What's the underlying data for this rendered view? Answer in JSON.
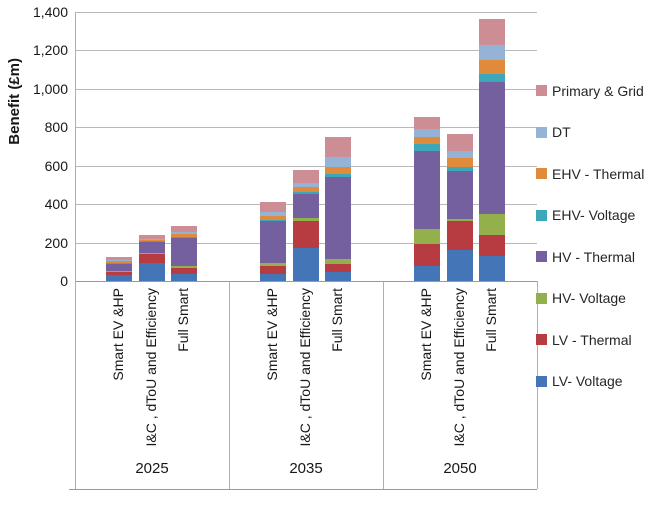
{
  "chart_data": {
    "type": "bar",
    "stacked": true,
    "title": "",
    "ylabel": "Benefit (£m)",
    "xlabel": "",
    "ylim": [
      0,
      1400
    ],
    "ytick_step": 200,
    "ytick_labels": [
      "0",
      "200",
      "400",
      "600",
      "800",
      "1,000",
      "1,200",
      "1,400"
    ],
    "grid": true,
    "legend_position": "right",
    "legend_order_top_to_bottom": [
      "Primary & Grid",
      "DT",
      "EHV - Thermal",
      "EHV- Voltage",
      "HV - Thermal",
      "HV- Voltage",
      "LV - Thermal",
      "LV- Voltage"
    ],
    "stack_order_bottom_to_top": [
      "LV- Voltage",
      "LV - Thermal",
      "HV- Voltage",
      "HV - Thermal",
      "EHV- Voltage",
      "EHV - Thermal",
      "DT",
      "Primary & Grid"
    ],
    "series_colors": {
      "Primary & Grid": "#cd8d94",
      "DT": "#95b3d7",
      "EHV - Thermal": "#e08a3c",
      "EHV- Voltage": "#3ba7b8",
      "HV - Thermal": "#75609f",
      "HV- Voltage": "#94b04c",
      "LV - Thermal": "#b63c42",
      "LV- Voltage": "#4475b6"
    },
    "groups": [
      {
        "label": "2025",
        "bars": [
          {
            "label": "Smart EV &HP",
            "values": {
              "LV- Voltage": 30,
              "LV - Thermal": 20,
              "HV- Voltage": 3,
              "HV - Thermal": 40,
              "EHV- Voltage": 3,
              "EHV - Thermal": 6,
              "DT": 5,
              "Primary & Grid": 18
            }
          },
          {
            "label": "I&C , dToU and Efficiency",
            "values": {
              "LV- Voltage": 95,
              "LV - Thermal": 50,
              "HV- Voltage": 3,
              "HV - Thermal": 60,
              "EHV- Voltage": 2,
              "EHV - Thermal": 5,
              "DT": 5,
              "Primary & Grid": 18
            }
          },
          {
            "label": "Full Smart",
            "values": {
              "LV- Voltage": 35,
              "LV - Thermal": 33,
              "HV- Voltage": 8,
              "HV - Thermal": 148,
              "EHV- Voltage": 4,
              "EHV - Thermal": 18,
              "DT": 10,
              "Primary & Grid": 28
            }
          }
        ]
      },
      {
        "label": "2035",
        "bars": [
          {
            "label": "Smart EV &HP",
            "values": {
              "LV- Voltage": 38,
              "LV - Thermal": 42,
              "HV- Voltage": 12,
              "HV - Thermal": 222,
              "EHV- Voltage": 5,
              "EHV - Thermal": 20,
              "DT": 20,
              "Primary & Grid": 50
            }
          },
          {
            "label": "I&C , dToU and Efficiency",
            "values": {
              "LV- Voltage": 173,
              "LV - Thermal": 140,
              "HV- Voltage": 15,
              "HV - Thermal": 127,
              "EHV- Voltage": 10,
              "EHV - Thermal": 25,
              "DT": 22,
              "Primary & Grid": 65
            }
          },
          {
            "label": "Full Smart",
            "values": {
              "LV- Voltage": 45,
              "LV - Thermal": 45,
              "HV- Voltage": 25,
              "HV - Thermal": 425,
              "EHV- Voltage": 17,
              "EHV - Thermal": 35,
              "DT": 55,
              "Primary & Grid": 100
            }
          }
        ]
      },
      {
        "label": "2050",
        "bars": [
          {
            "label": "Smart EV &HP",
            "values": {
              "LV- Voltage": 80,
              "LV - Thermal": 112,
              "HV- Voltage": 78,
              "HV - Thermal": 407,
              "EHV- Voltage": 35,
              "EHV - Thermal": 38,
              "DT": 40,
              "Primary & Grid": 65
            }
          },
          {
            "label": "I&C , dToU and Efficiency",
            "values": {
              "LV- Voltage": 163,
              "LV - Thermal": 149,
              "HV- Voltage": 10,
              "HV - Thermal": 250,
              "EHV- Voltage": 21,
              "EHV - Thermal": 48,
              "DT": 35,
              "Primary & Grid": 90
            }
          },
          {
            "label": "Full Smart",
            "values": {
              "LV- Voltage": 130,
              "LV - Thermal": 110,
              "HV- Voltage": 110,
              "HV - Thermal": 685,
              "EHV- Voltage": 42,
              "EHV - Thermal": 74,
              "DT": 78,
              "Primary & Grid": 135
            }
          }
        ]
      }
    ]
  }
}
